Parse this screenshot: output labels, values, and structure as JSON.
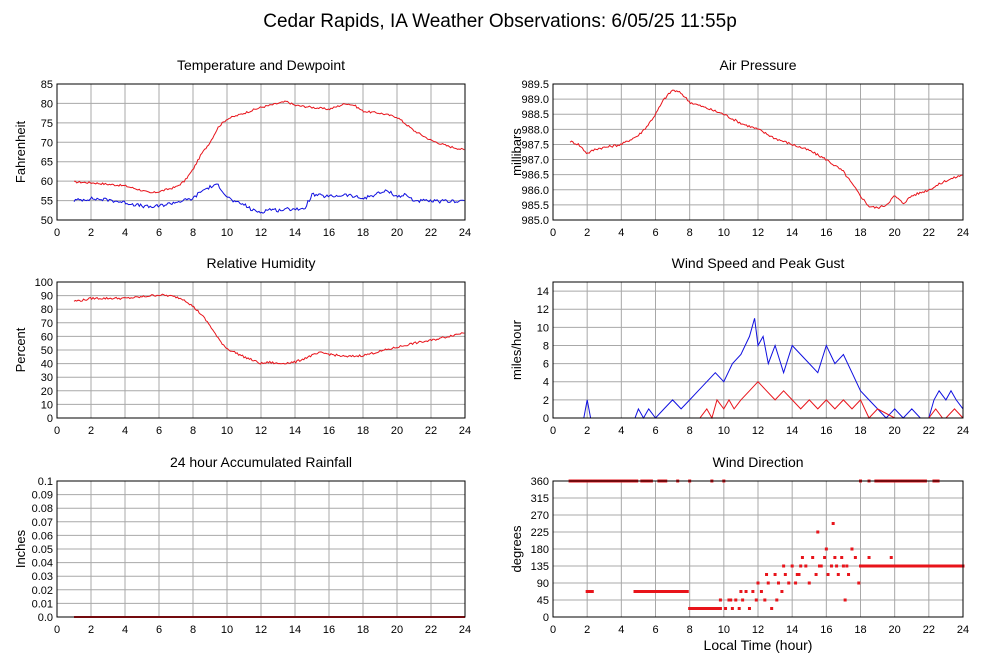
{
  "page_title": "Cedar Rapids, IA Weather Observations: 6/05/25 11:55p",
  "colors": {
    "red": "#e8141b",
    "blue": "#1010e0",
    "grid": "#a8a8a8"
  },
  "chart_data": [
    {
      "id": "temp",
      "type": "line",
      "title": "Temperature and Dewpoint",
      "xlabel": "",
      "ylabel": "Fahrenheit",
      "xlim": [
        0,
        24
      ],
      "ylim": [
        50,
        85
      ],
      "xticks": [
        0,
        2,
        4,
        6,
        8,
        10,
        12,
        14,
        16,
        18,
        20,
        22,
        24
      ],
      "yticks": [
        50,
        55,
        60,
        65,
        70,
        75,
        80,
        85
      ],
      "grid": true,
      "series": [
        {
          "color": "#e8141b",
          "noise": 0.25,
          "x": [
            1.0,
            2.0,
            3.0,
            4.0,
            5.0,
            5.5,
            6.0,
            7.0,
            7.5,
            8.0,
            8.5,
            9.0,
            9.5,
            10.0,
            11.0,
            12.0,
            13.0,
            13.5,
            14.0,
            15.0,
            16.0,
            17.0,
            17.5,
            18.0,
            19.0,
            20.0,
            21.0,
            22.0,
            23.0,
            24.0
          ],
          "y": [
            59.8,
            59.6,
            59.2,
            58.8,
            57.6,
            56.9,
            57.3,
            58.5,
            60.0,
            63.0,
            67.0,
            70.0,
            74.0,
            76.0,
            77.5,
            79.0,
            80.0,
            80.5,
            79.5,
            79.0,
            78.5,
            80.0,
            79.5,
            78.0,
            77.5,
            76.5,
            73.0,
            70.5,
            69.0,
            68.0
          ]
        },
        {
          "color": "#1010e0",
          "noise": 0.45,
          "x": [
            1.0,
            2.0,
            3.0,
            4.0,
            5.0,
            5.5,
            6.0,
            7.0,
            8.0,
            8.5,
            9.0,
            9.5,
            10.0,
            10.5,
            11.0,
            11.5,
            12.0,
            12.5,
            13.0,
            14.0,
            14.5,
            15.0,
            16.0,
            17.0,
            18.0,
            19.0,
            19.5,
            20.0,
            20.5,
            21.0,
            22.0,
            23.0,
            24.0
          ],
          "y": [
            55.0,
            55.5,
            55.2,
            54.5,
            53.6,
            53.3,
            53.6,
            54.6,
            55.5,
            57.5,
            58.5,
            59.0,
            56.0,
            54.5,
            54.0,
            52.5,
            52.0,
            52.8,
            52.5,
            53.0,
            52.5,
            56.5,
            56.0,
            56.5,
            55.5,
            57.0,
            57.5,
            56.0,
            56.5,
            55.0,
            54.8,
            54.8,
            55.0
          ]
        }
      ]
    },
    {
      "id": "pressure",
      "type": "line",
      "title": "Air Pressure",
      "xlabel": "",
      "ylabel": "millibars",
      "xlim": [
        0,
        24
      ],
      "ylim": [
        985.0,
        989.5
      ],
      "xticks": [
        0,
        2,
        4,
        6,
        8,
        10,
        12,
        14,
        16,
        18,
        20,
        22,
        24
      ],
      "yticks": [
        985.0,
        985.5,
        986.0,
        986.5,
        987.0,
        987.5,
        988.0,
        988.5,
        989.0,
        989.5
      ],
      "ytick_decimals": 1,
      "grid": true,
      "series": [
        {
          "color": "#e8141b",
          "noise": 0.04,
          "x": [
            1.0,
            1.5,
            2.0,
            2.5,
            3.0,
            4.0,
            5.0,
            5.5,
            6.0,
            6.5,
            7.0,
            7.5,
            8.0,
            8.5,
            9.0,
            10.0,
            11.0,
            12.0,
            13.0,
            14.0,
            15.0,
            16.0,
            17.0,
            17.5,
            18.0,
            18.5,
            19.0,
            19.5,
            20.0,
            20.5,
            21.0,
            22.0,
            23.0,
            24.0
          ],
          "y": [
            987.6,
            987.5,
            987.2,
            987.35,
            987.4,
            987.5,
            987.8,
            988.1,
            988.5,
            989.0,
            989.3,
            989.2,
            988.9,
            988.8,
            988.7,
            988.5,
            988.2,
            988.0,
            987.7,
            987.5,
            987.3,
            987.0,
            986.6,
            986.2,
            985.8,
            985.45,
            985.4,
            985.5,
            985.8,
            985.55,
            985.8,
            986.0,
            986.3,
            986.5
          ]
        }
      ]
    },
    {
      "id": "humidity",
      "type": "line",
      "title": "Relative Humidity",
      "xlabel": "",
      "ylabel": "Percent",
      "xlim": [
        0,
        24
      ],
      "ylim": [
        0,
        100
      ],
      "xticks": [
        0,
        2,
        4,
        6,
        8,
        10,
        12,
        14,
        16,
        18,
        20,
        22,
        24
      ],
      "yticks": [
        0,
        10,
        20,
        30,
        40,
        50,
        60,
        70,
        80,
        90,
        100
      ],
      "grid": true,
      "series": [
        {
          "color": "#e8141b",
          "noise": 0.8,
          "x": [
            1.0,
            1.5,
            2.0,
            3.0,
            4.0,
            5.0,
            5.5,
            6.0,
            6.5,
            7.0,
            7.5,
            8.0,
            8.5,
            9.0,
            9.5,
            10.0,
            10.5,
            11.0,
            12.0,
            12.5,
            13.0,
            14.0,
            15.0,
            15.5,
            16.0,
            17.0,
            18.0,
            19.0,
            20.0,
            21.0,
            22.0,
            23.0,
            24.0
          ],
          "y": [
            86,
            86.5,
            88,
            88,
            88,
            89,
            90,
            90.5,
            90,
            89,
            87,
            82,
            76,
            68,
            58,
            51,
            48,
            45,
            40,
            41,
            40,
            41,
            46,
            48,
            47,
            45,
            46,
            49,
            52,
            55,
            57,
            60,
            63
          ]
        }
      ]
    },
    {
      "id": "wind",
      "type": "line",
      "title": "Wind Speed and Peak Gust",
      "xlabel": "",
      "ylabel": "miles/hour",
      "xlim": [
        0,
        24
      ],
      "ylim": [
        0,
        15
      ],
      "xticks": [
        0,
        2,
        4,
        6,
        8,
        10,
        12,
        14,
        16,
        18,
        20,
        22,
        24
      ],
      "yticks": [
        0,
        2,
        4,
        6,
        8,
        10,
        12,
        14
      ],
      "grid": true,
      "series": [
        {
          "color": "#1010e0",
          "x": [
            1.0,
            1.8,
            2.0,
            2.2,
            2.4,
            3.0,
            4.0,
            4.8,
            5.0,
            5.3,
            5.6,
            6.0,
            6.5,
            7.0,
            7.5,
            8.0,
            8.5,
            9.0,
            9.5,
            10.0,
            10.5,
            11.0,
            11.5,
            11.8,
            12.0,
            12.3,
            12.6,
            13.0,
            13.5,
            14.0,
            14.5,
            15.0,
            15.5,
            16.0,
            16.5,
            17.0,
            17.5,
            18.0,
            18.5,
            19.0,
            19.5,
            20.0,
            20.5,
            21.0,
            21.5,
            22.0,
            22.3,
            22.6,
            23.0,
            23.3,
            23.6,
            24.0
          ],
          "y": [
            0,
            0,
            2,
            0,
            0,
            0,
            0,
            0,
            1,
            0,
            1,
            0,
            1,
            2,
            1,
            2,
            3,
            4,
            5,
            4,
            6,
            7,
            9,
            11,
            8,
            9,
            6,
            8,
            5,
            8,
            7,
            6,
            5,
            8,
            6,
            7,
            5,
            3,
            2,
            1,
            0,
            1,
            0,
            1,
            0,
            0,
            2,
            3,
            2,
            3,
            2,
            1
          ]
        },
        {
          "color": "#e8141b",
          "x": [
            1.0,
            4.0,
            8.0,
            8.6,
            9.0,
            9.3,
            9.6,
            10.0,
            10.3,
            10.6,
            11.0,
            11.5,
            12.0,
            12.5,
            13.0,
            13.5,
            14.0,
            14.5,
            15.0,
            15.5,
            16.0,
            16.5,
            17.0,
            17.5,
            18.0,
            18.5,
            19.0,
            20.0,
            21.0,
            22.0,
            22.4,
            22.8,
            23.0,
            23.5,
            24.0
          ],
          "y": [
            0,
            0,
            0,
            0,
            1,
            0,
            2,
            1,
            2,
            1,
            2,
            3,
            4,
            3,
            2,
            3,
            2,
            1,
            2,
            1,
            2,
            1,
            2,
            1,
            2,
            0,
            1,
            0,
            0,
            0,
            1,
            0,
            0,
            1,
            0
          ]
        }
      ]
    },
    {
      "id": "rain",
      "type": "line",
      "title": "24 hour Accumulated Rainfall",
      "xlabel": "",
      "ylabel": "Inches",
      "xlim": [
        0,
        24
      ],
      "ylim": [
        0,
        0.1
      ],
      "xticks": [
        0,
        2,
        4,
        6,
        8,
        10,
        12,
        14,
        16,
        18,
        20,
        22,
        24
      ],
      "yticks": [
        0,
        0.01,
        0.02,
        0.03,
        0.04,
        0.05,
        0.06,
        0.07,
        0.08,
        0.09,
        0.1
      ],
      "ytick_labels": [
        "0.0",
        "0.01",
        "0.02",
        "0.03",
        "0.04",
        "0.05",
        "0.06",
        "0.07",
        "0.08",
        "0.09",
        "0.1"
      ],
      "grid": true,
      "series": [
        {
          "color": "#e8141b",
          "x": [
            1.0,
            24.0
          ],
          "y": [
            0,
            0
          ]
        }
      ]
    },
    {
      "id": "direction",
      "type": "scatter",
      "title": "Wind Direction",
      "xlabel": "Local Time (hour)",
      "ylabel": "degrees",
      "xlim": [
        0,
        24
      ],
      "ylim": [
        0,
        360
      ],
      "xticks": [
        0,
        2,
        4,
        6,
        8,
        10,
        12,
        14,
        16,
        18,
        20,
        22,
        24
      ],
      "yticks": [
        0,
        45,
        90,
        135,
        180,
        225,
        270,
        315,
        360
      ],
      "grid": true,
      "series": [
        {
          "color": "#e8141b",
          "segments": [
            {
              "x0": 1.0,
              "x1": 4.9,
              "y": 360,
              "step": 0.05
            },
            {
              "x0": 5.2,
              "x1": 5.8,
              "y": 360,
              "step": 0.08
            },
            {
              "x0": 6.2,
              "x1": 6.6,
              "y": 360,
              "step": 0.08
            },
            {
              "x0": 2.0,
              "x1": 2.3,
              "y": 67.5,
              "step": 0.06
            },
            {
              "x0": 4.8,
              "x1": 7.9,
              "y": 67.5,
              "step": 0.06
            },
            {
              "x0": 8.0,
              "x1": 9.8,
              "y": 22.5,
              "step": 0.06
            },
            {
              "x0": 18.0,
              "x1": 24.0,
              "y": 135,
              "step": 0.06
            },
            {
              "x0": 18.9,
              "x1": 21.8,
              "y": 360,
              "step": 0.1
            },
            {
              "x0": 22.3,
              "x1": 22.6,
              "y": 360,
              "step": 0.08
            }
          ],
          "points": [
            [
              7.3,
              360
            ],
            [
              8.0,
              360
            ],
            [
              9.3,
              360
            ],
            [
              10.0,
              360
            ],
            [
              18.0,
              360
            ],
            [
              18.5,
              360
            ],
            [
              9.8,
              45
            ],
            [
              10.1,
              22.5
            ],
            [
              10.3,
              45
            ],
            [
              10.5,
              22.5
            ],
            [
              10.7,
              45
            ],
            [
              10.9,
              22.5
            ],
            [
              11.1,
              45
            ],
            [
              11.3,
              67.5
            ],
            [
              11.5,
              22.5
            ],
            [
              11.7,
              67.5
            ],
            [
              11.9,
              45
            ],
            [
              12.0,
              90
            ],
            [
              12.2,
              67.5
            ],
            [
              12.4,
              45
            ],
            [
              12.6,
              90
            ],
            [
              12.8,
              22.5
            ],
            [
              13.0,
              112.5
            ],
            [
              13.2,
              90
            ],
            [
              13.4,
              67.5
            ],
            [
              13.6,
              112.5
            ],
            [
              13.8,
              90
            ],
            [
              14.0,
              135
            ],
            [
              14.2,
              90
            ],
            [
              14.4,
              112.5
            ],
            [
              14.6,
              157.5
            ],
            [
              14.8,
              135
            ],
            [
              15.0,
              90
            ],
            [
              15.2,
              157.5
            ],
            [
              15.4,
              112.5
            ],
            [
              15.5,
              225
            ],
            [
              15.7,
              135
            ],
            [
              15.9,
              157.5
            ],
            [
              16.0,
              180
            ],
            [
              16.1,
              112.5
            ],
            [
              16.3,
              135
            ],
            [
              16.4,
              247.5
            ],
            [
              16.5,
              157.5
            ],
            [
              16.7,
              112.5
            ],
            [
              16.9,
              157.5
            ],
            [
              17.0,
              135
            ],
            [
              17.1,
              45
            ],
            [
              17.3,
              112.5
            ],
            [
              17.5,
              180
            ],
            [
              17.7,
              157.5
            ],
            [
              17.9,
              90
            ],
            [
              18.1,
              135
            ],
            [
              18.5,
              157.5
            ],
            [
              19.0,
              135
            ],
            [
              19.8,
              157.5
            ],
            [
              12.5,
              112.5
            ],
            [
              13.5,
              135
            ],
            [
              14.5,
              135
            ],
            [
              15.6,
              135
            ],
            [
              16.6,
              135
            ],
            [
              17.2,
              135
            ],
            [
              11.0,
              67.5
            ],
            [
              10.4,
              45
            ],
            [
              9.6,
              22.5
            ],
            [
              13.1,
              45
            ],
            [
              14.3,
              112.5
            ]
          ]
        }
      ]
    }
  ]
}
